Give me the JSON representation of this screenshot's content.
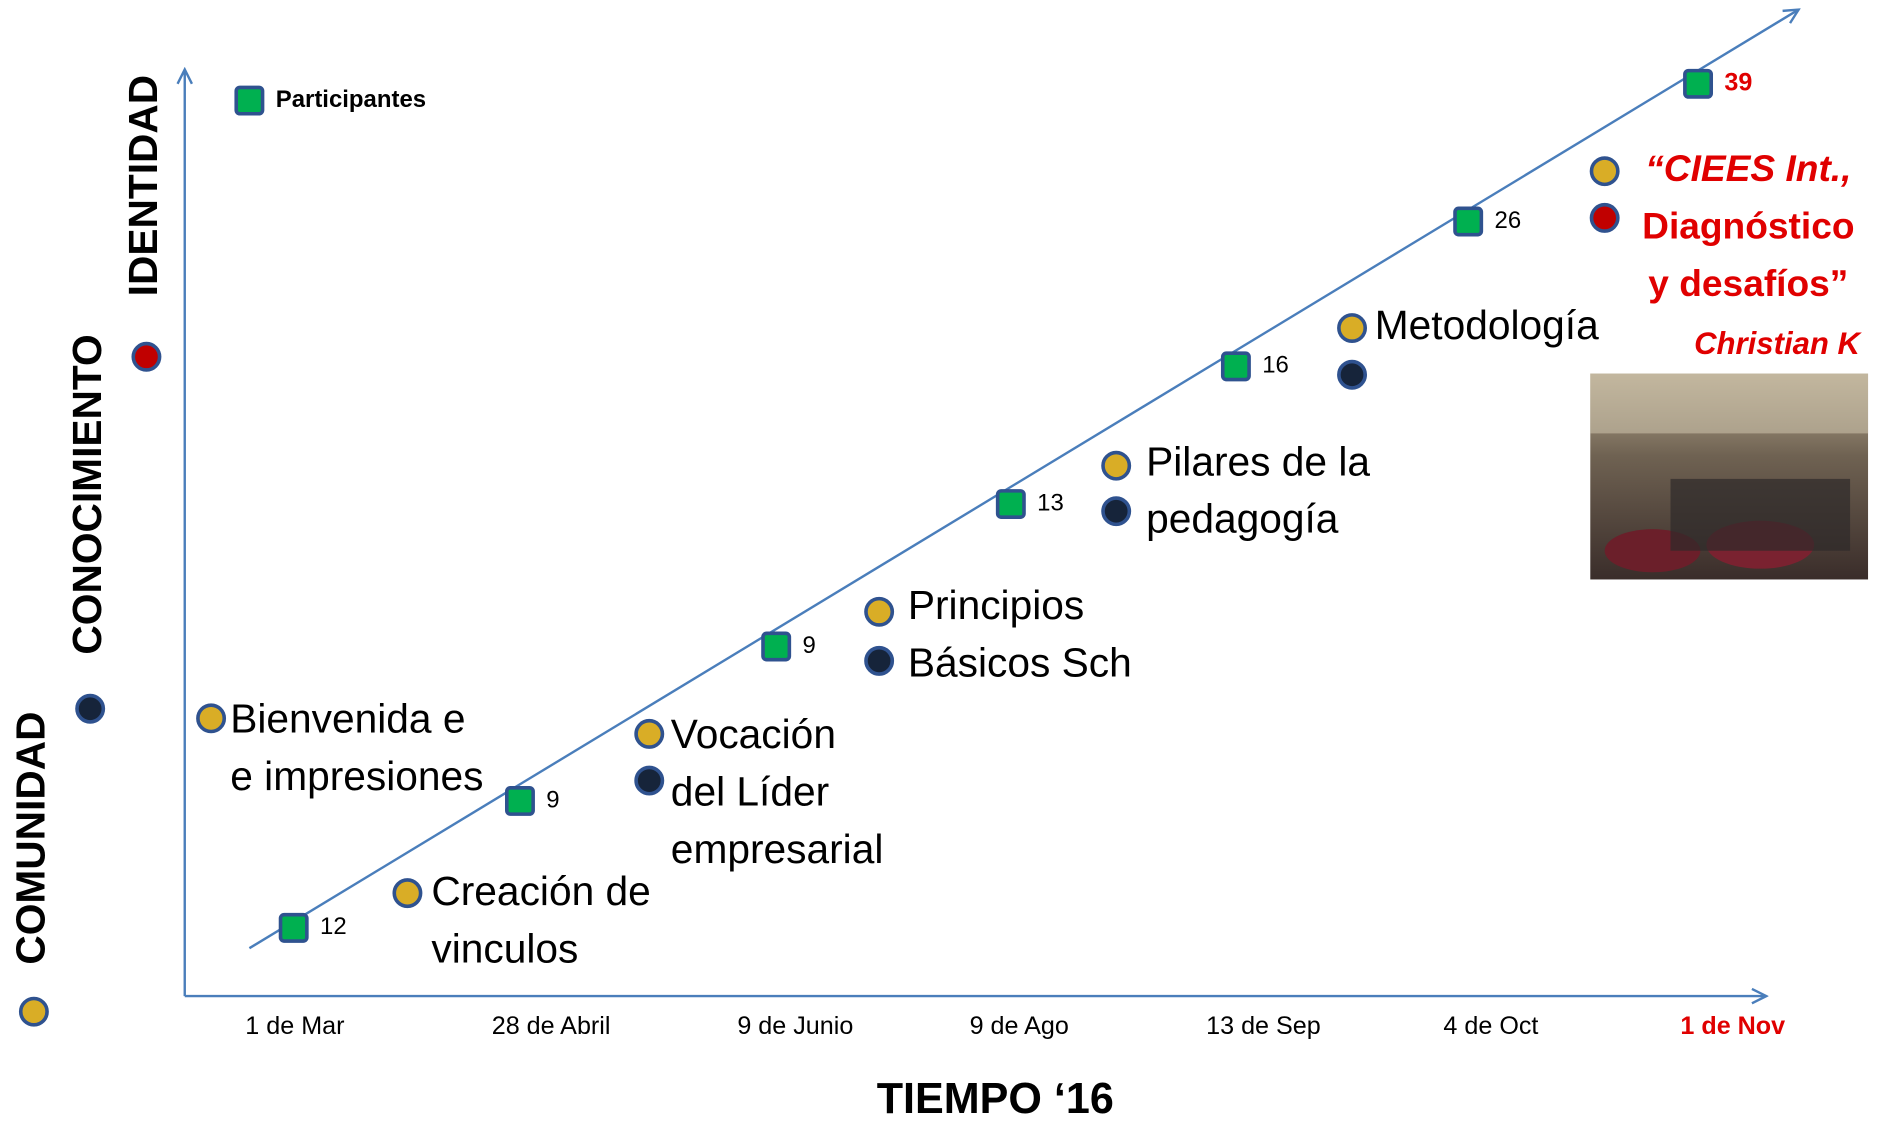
{
  "axes": {
    "y_labels": [
      "COMUNIDAD",
      "CONOCIMIENTO",
      "IDENTIDAD"
    ],
    "x_title": "TIEMPO  ‘16"
  },
  "legend": "Participantes",
  "dates": [
    "1 de Mar",
    "28 de Abril",
    "9 de Junio",
    "9 de Ago",
    "13 de Sep",
    "4 de Oct",
    "1 de Nov"
  ],
  "participants": [
    "12",
    "9",
    "9",
    "13",
    "16",
    "26",
    "39"
  ],
  "sessions": [
    {
      "lines": [
        "Bienvenida e",
        "e impresiones"
      ]
    },
    {
      "lines": [
        "Creación de",
        "vinculos"
      ]
    },
    {
      "lines": [
        "Vocación",
        "del Líder",
        " empresarial"
      ]
    },
    {
      "lines": [
        "Principios",
        "Básicos Sch"
      ]
    },
    {
      "lines": [
        "Pilares de la",
        "pedagogía"
      ]
    },
    {
      "lines": [
        "Metodología"
      ]
    },
    {
      "lines": [
        "“CIEES  Int.,",
        "Diagnóstico",
        "y desafíos”"
      ]
    }
  ],
  "speaker": "Christian K"
}
